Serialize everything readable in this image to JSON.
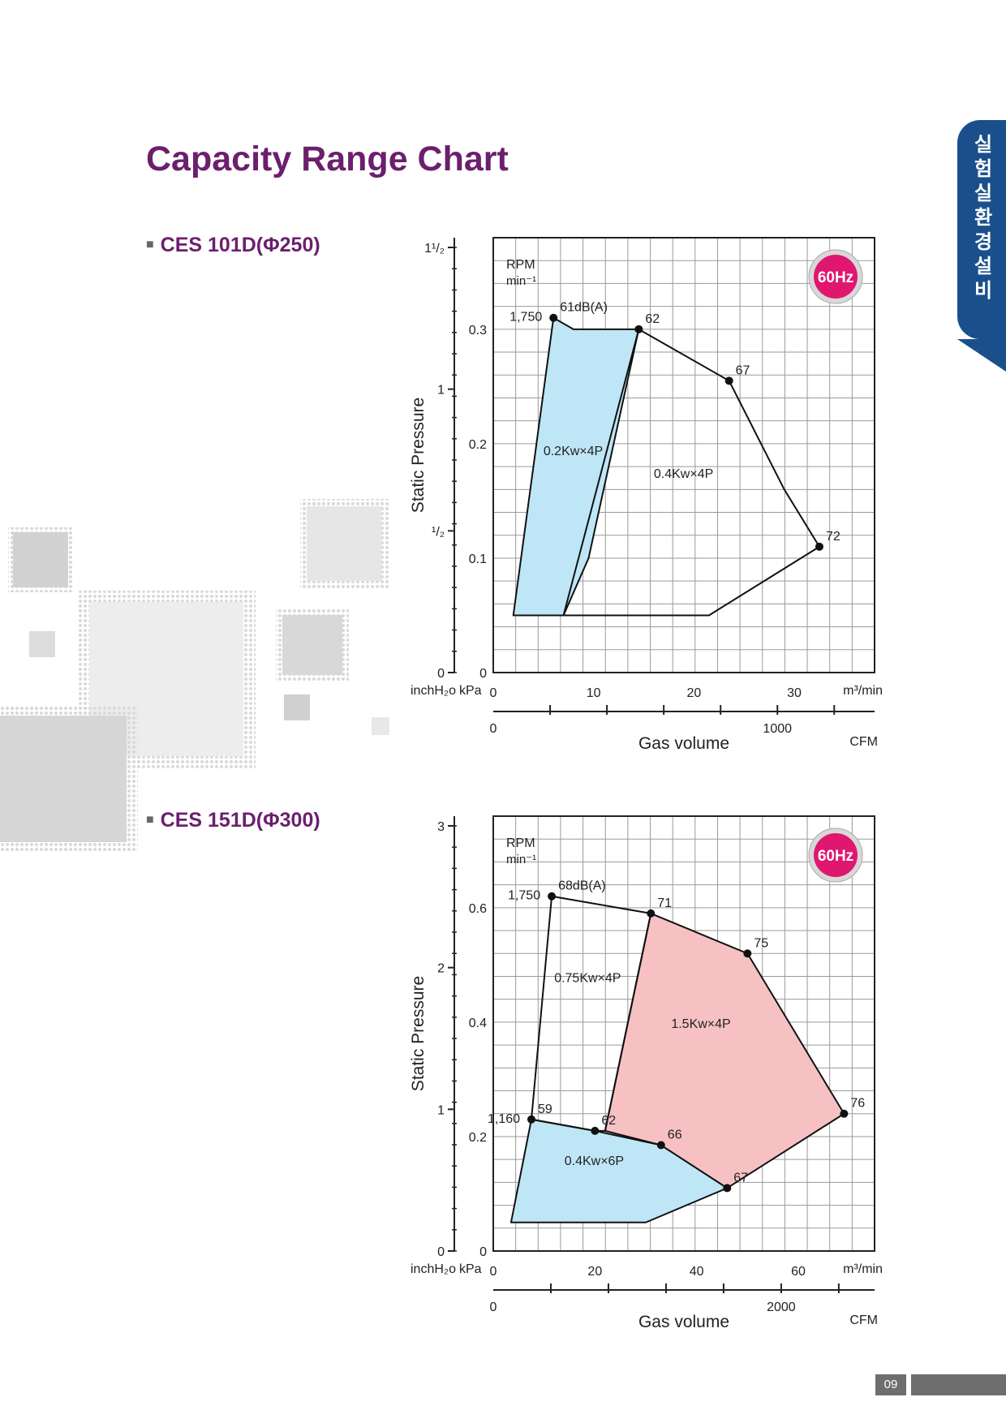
{
  "page": {
    "title": "Capacity Range Chart",
    "side_tab": "실험실 환경설비",
    "page_number": "09",
    "colors": {
      "title": "#6b1f6d",
      "tab": "#1b4f8c",
      "blue_fill": "#bfe6f7",
      "red_fill": "#f7c1c4",
      "hz_badge": "#e0176f"
    }
  },
  "charts": [
    {
      "label": "CES 101D(Φ250)",
      "bullet": "■"
    },
    {
      "label": "CES 151D(Φ300)",
      "bullet": "■"
    }
  ],
  "chart_data": [
    {
      "type": "area",
      "name": "CES 101D(Φ250)",
      "badge": "60Hz",
      "ylabel": "Static Pressure",
      "xlabel": "Gas volume",
      "rpm_label": "RPM",
      "rpm_unit": "min⁻¹",
      "grid": true,
      "x_unit": "m³/min",
      "cfm_unit": "CFM",
      "y_unit_inch": "inchH₂o",
      "y_unit_kpa": "kPa",
      "xlim": [
        0,
        38
      ],
      "ylim_kpa": [
        0,
        0.38
      ],
      "x_ticks": [
        {
          "v": 0,
          "label": "0"
        },
        {
          "v": 10,
          "label": "10"
        },
        {
          "v": 20,
          "label": "20"
        },
        {
          "v": 30,
          "label": "30"
        }
      ],
      "kpa_ticks": [
        {
          "v": 0,
          "label": "0"
        },
        {
          "v": 0.1,
          "label": "0.1"
        },
        {
          "v": 0.2,
          "label": "0.2"
        },
        {
          "v": 0.3,
          "label": "0.3"
        }
      ],
      "inch_ticks": [
        {
          "v": 0,
          "label": "0"
        },
        {
          "v": 0.5,
          "label": "¹/₂"
        },
        {
          "v": 1,
          "label": "1"
        },
        {
          "v": 1.5,
          "label": "1¹/₂"
        }
      ],
      "cfm_ticks": [
        {
          "v": 0,
          "label": "0"
        },
        {
          "v": 1000,
          "label": "1000"
        }
      ],
      "regions": [
        {
          "fill": "blue",
          "label": "0.2Kw×4P",
          "label_at": [
            5,
            0.19
          ],
          "points": [
            [
              2,
              0.05
            ],
            [
              6,
              0.31
            ],
            [
              8,
              0.3
            ],
            [
              10,
              0.3
            ],
            [
              14.5,
              0.3
            ],
            [
              12,
              0.2
            ],
            [
              9.5,
              0.1
            ],
            [
              7,
              0.05
            ]
          ]
        },
        {
          "fill": "none",
          "label": "0.4Kw×4P",
          "label_at": [
            16,
            0.17
          ],
          "points": [
            [
              14.5,
              0.3
            ],
            [
              23.5,
              0.255
            ],
            [
              29,
              0.16
            ],
            [
              32.5,
              0.11
            ],
            [
              21.5,
              0.05
            ],
            [
              7,
              0.05
            ]
          ]
        }
      ],
      "points": [
        {
          "x": 6,
          "y": 0.31,
          "label": "61dB(A)",
          "rpm": "1,750"
        },
        {
          "x": 14.5,
          "y": 0.3,
          "label": "62"
        },
        {
          "x": 23.5,
          "y": 0.255,
          "label": "67"
        },
        {
          "x": 32.5,
          "y": 0.11,
          "label": "72"
        }
      ]
    },
    {
      "type": "area",
      "name": "CES 151D(Φ300)",
      "badge": "60Hz",
      "ylabel": "Static Pressure",
      "xlabel": "Gas volume",
      "rpm_label": "RPM",
      "rpm_unit": "min⁻¹",
      "grid": true,
      "x_unit": "m³/min",
      "cfm_unit": "CFM",
      "y_unit_inch": "inchH₂o",
      "y_unit_kpa": "kPa",
      "xlim": [
        0,
        75
      ],
      "ylim_kpa": [
        0,
        0.76
      ],
      "x_ticks": [
        {
          "v": 0,
          "label": "0"
        },
        {
          "v": 20,
          "label": "20"
        },
        {
          "v": 40,
          "label": "40"
        },
        {
          "v": 60,
          "label": "60"
        }
      ],
      "kpa_ticks": [
        {
          "v": 0,
          "label": "0"
        },
        {
          "v": 0.2,
          "label": "0.2"
        },
        {
          "v": 0.4,
          "label": "0.4"
        },
        {
          "v": 0.6,
          "label": "0.6"
        }
      ],
      "inch_ticks": [
        {
          "v": 0,
          "label": "0"
        },
        {
          "v": 1,
          "label": "1"
        },
        {
          "v": 2,
          "label": "2"
        },
        {
          "v": 3,
          "label": "3"
        }
      ],
      "cfm_ticks": [
        {
          "v": 0,
          "label": "0"
        },
        {
          "v": 2000,
          "label": "2000"
        }
      ],
      "regions": [
        {
          "fill": "blue",
          "label": "0.4Kw×6P",
          "label_at": [
            14,
            0.15
          ],
          "points": [
            [
              3.5,
              0.05
            ],
            [
              7.5,
              0.23
            ],
            [
              20,
              0.21
            ],
            [
              33,
              0.185
            ],
            [
              46,
              0.11
            ],
            [
              30,
              0.05
            ]
          ]
        },
        {
          "fill": "red",
          "label": "1.5Kw×4P",
          "label_at": [
            35,
            0.39
          ],
          "points": [
            [
              31,
              0.59
            ],
            [
              50,
              0.52
            ],
            [
              69,
              0.24
            ],
            [
              46,
              0.11
            ],
            [
              33,
              0.185
            ],
            [
              22,
              0.21
            ]
          ]
        },
        {
          "fill": "none",
          "label": "0.75Kw×4P",
          "label_at": [
            12,
            0.47
          ],
          "points": [
            [
              7.5,
              0.23
            ],
            [
              11.5,
              0.62
            ],
            [
              31,
              0.59
            ],
            [
              22,
              0.21
            ],
            [
              20,
              0.21
            ]
          ]
        }
      ],
      "points": [
        {
          "x": 11.5,
          "y": 0.62,
          "label": "68dB(A)",
          "rpm": "1,750"
        },
        {
          "x": 31,
          "y": 0.59,
          "label": "71"
        },
        {
          "x": 50,
          "y": 0.52,
          "label": "75"
        },
        {
          "x": 69,
          "y": 0.24,
          "label": "76"
        },
        {
          "x": 7.5,
          "y": 0.23,
          "label": "59",
          "rpm": "1,160"
        },
        {
          "x": 20,
          "y": 0.21,
          "label": "62"
        },
        {
          "x": 33,
          "y": 0.185,
          "label": "66"
        },
        {
          "x": 46,
          "y": 0.11,
          "label": "67"
        }
      ]
    }
  ]
}
